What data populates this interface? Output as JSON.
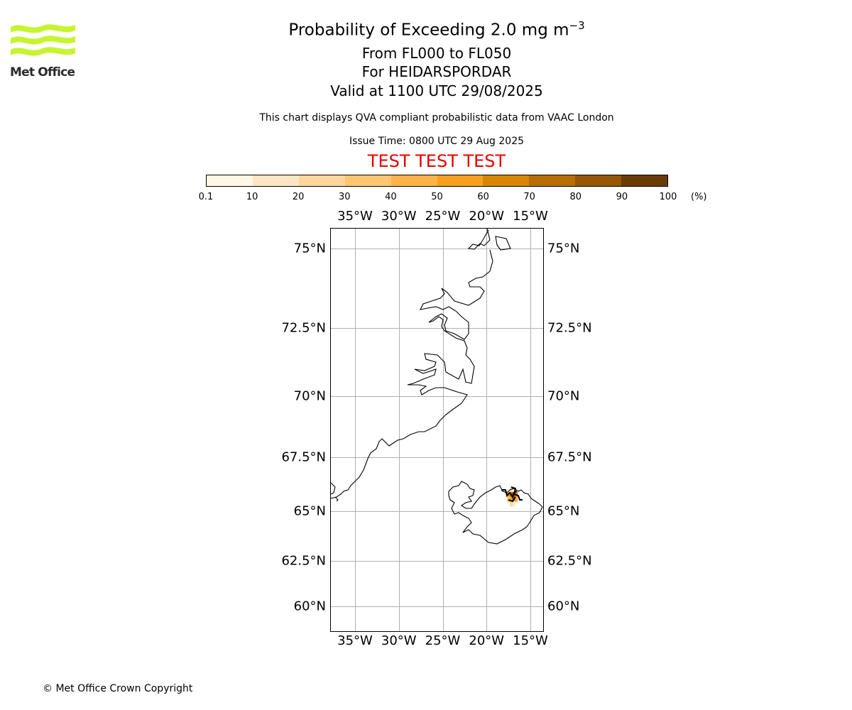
{
  "logo": {
    "text": "Met Office",
    "color": "#c6f430"
  },
  "header": {
    "title": "Probability of Exceeding 2.0 mg m",
    "title_sup": "−3",
    "subtitle_levels": "From FL000 to FL050",
    "subtitle_volcano": "For HEIDARSPORDAR",
    "subtitle_valid": "Valid at 1100 UTC 29/08/2025",
    "note": "This chart displays QVA compliant probabilistic data from VAAC London",
    "issue_time": "Issue Time: 0800 UTC 29 Aug 2025",
    "test_banner": "TEST TEST TEST",
    "test_color": "#e60000"
  },
  "colorbar": {
    "ticks": [
      "0.1",
      "10",
      "20",
      "30",
      "40",
      "50",
      "60",
      "70",
      "80",
      "90",
      "100"
    ],
    "unit": "(%)",
    "colors": [
      "#fff6e6",
      "#ffe6c2",
      "#ffd79c",
      "#ffc573",
      "#ffb347",
      "#f7a020",
      "#d98606",
      "#b86d05",
      "#975604",
      "#6b3c04"
    ]
  },
  "map": {
    "lon_labels": [
      "35°W",
      "30°W",
      "25°W",
      "20°W",
      "15°W"
    ],
    "lat_labels": [
      "75°N",
      "72.5°N",
      "70°N",
      "67.5°N",
      "65°N",
      "62.5°N",
      "60°N"
    ],
    "probability_cells": [
      {
        "lon": -17.2,
        "lat": 65.95,
        "pct": 25
      },
      {
        "lon": -16.9,
        "lat": 65.95,
        "pct": 15
      },
      {
        "lon": -17.5,
        "lat": 65.75,
        "pct": 55
      },
      {
        "lon": -17.2,
        "lat": 65.75,
        "pct": 75
      },
      {
        "lon": -16.9,
        "lat": 65.75,
        "pct": 85
      },
      {
        "lon": -16.6,
        "lat": 65.75,
        "pct": 65
      },
      {
        "lon": -17.5,
        "lat": 65.55,
        "pct": 35
      },
      {
        "lon": -17.2,
        "lat": 65.55,
        "pct": 55
      },
      {
        "lon": -16.9,
        "lat": 65.55,
        "pct": 85
      },
      {
        "lon": -16.6,
        "lat": 65.55,
        "pct": 45
      },
      {
        "lon": -17.2,
        "lat": 65.35,
        "pct": 25
      },
      {
        "lon": -16.9,
        "lat": 65.35,
        "pct": 15
      }
    ]
  },
  "footer": {
    "copyright": "© Met Office Crown Copyright"
  }
}
